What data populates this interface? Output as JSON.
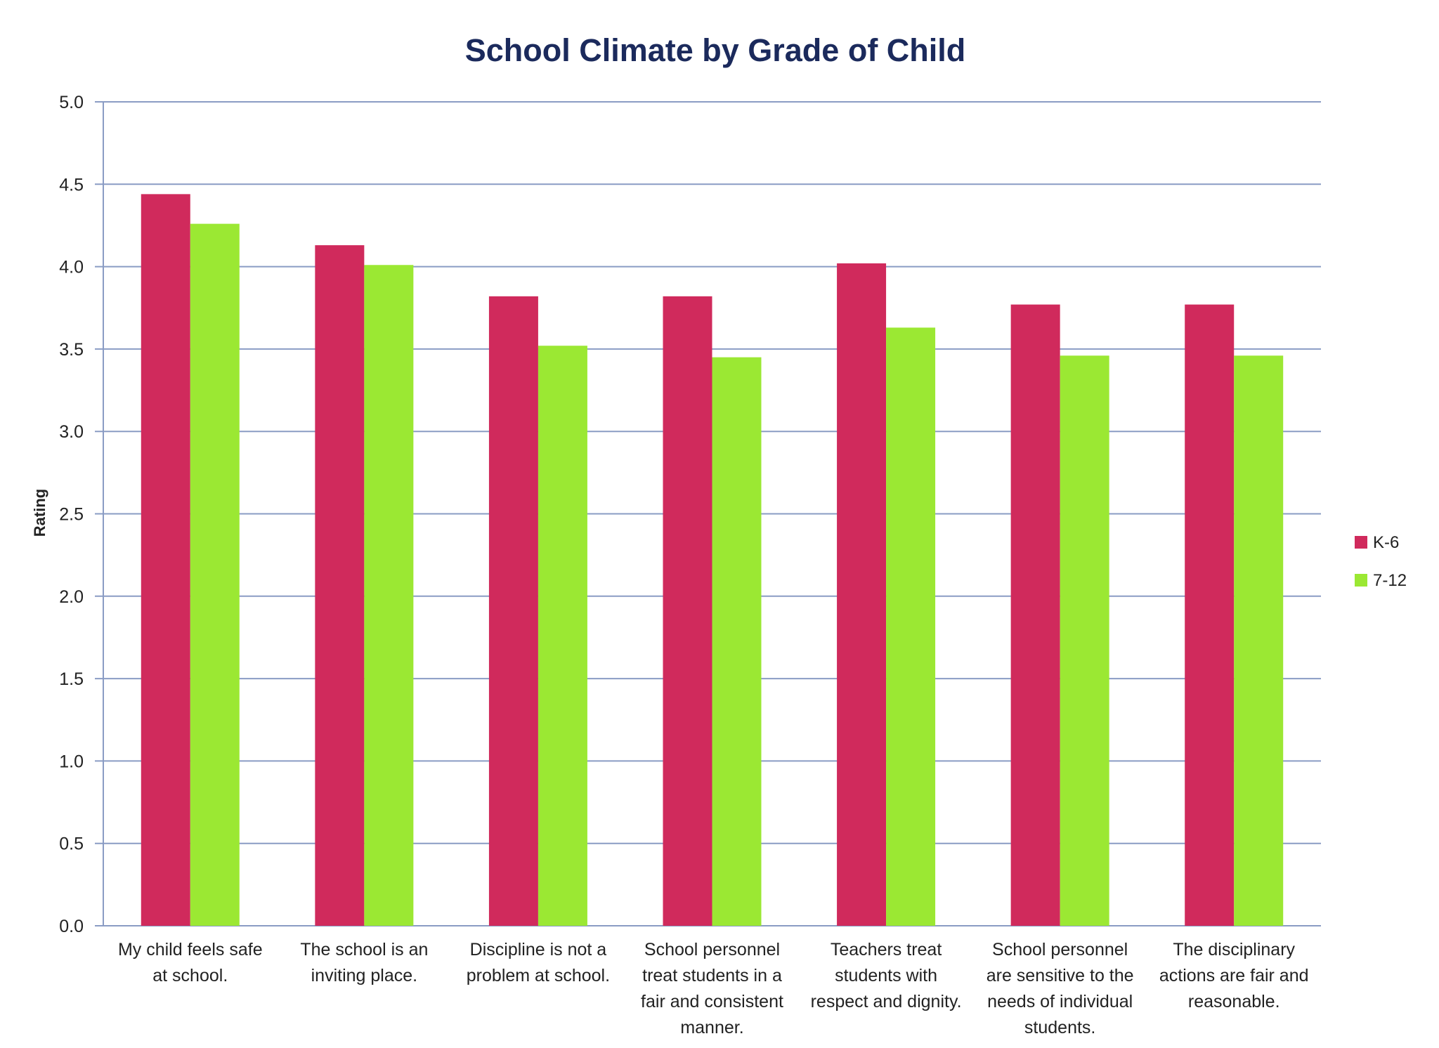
{
  "chart_data": {
    "type": "bar",
    "title": "School Climate by Grade of Child",
    "xlabel": "",
    "ylabel": "Rating",
    "ylim": [
      0,
      5
    ],
    "yticks": [
      "0.0",
      "0.5",
      "1.0",
      "1.5",
      "2.0",
      "2.5",
      "3.0",
      "3.5",
      "4.0",
      "4.5",
      "5.0"
    ],
    "grid": true,
    "legend_position": "right",
    "categories": [
      [
        "My child feels safe",
        "at school."
      ],
      [
        "The school is an",
        "inviting place."
      ],
      [
        "Discipline is not a",
        "problem at school."
      ],
      [
        "School personnel",
        "treat students in a",
        "fair and consistent",
        "manner."
      ],
      [
        "Teachers treat",
        "students with",
        "respect and dignity."
      ],
      [
        "School personnel",
        "are sensitive to the",
        "needs of individual",
        "students."
      ],
      [
        "The disciplinary",
        "actions are fair and",
        "reasonable."
      ]
    ],
    "series": [
      {
        "name": "K-6",
        "color": "#d02a5c",
        "values": [
          4.44,
          4.13,
          3.82,
          3.82,
          4.02,
          3.77,
          3.77
        ]
      },
      {
        "name": "7-12",
        "color": "#9be833",
        "values": [
          4.26,
          4.01,
          3.52,
          3.45,
          3.63,
          3.46,
          3.46
        ]
      }
    ],
    "colors": {
      "grid": "#8a9cc4",
      "axis": "#8a9cc4",
      "title": "#1b2a5c",
      "text": "#222222"
    }
  }
}
